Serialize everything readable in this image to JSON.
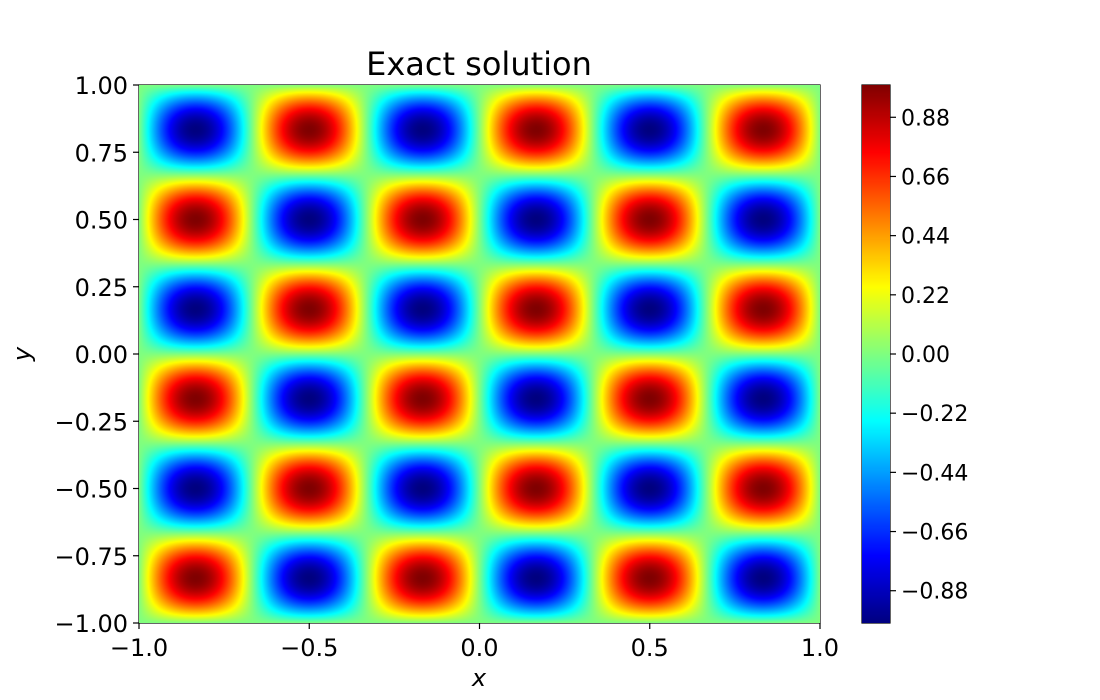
{
  "chart_data": {
    "type": "heatmap",
    "title": "Exact solution",
    "xlabel": "x",
    "ylabel": "y",
    "xlim": [
      -1.0,
      1.0
    ],
    "ylim": [
      -1.0,
      1.0
    ],
    "colormap": "jet",
    "field": {
      "formula": "sin(3*pi*x)*sin(3*pi*y)",
      "x_periods": 3,
      "y_periods": 3,
      "vmin": -1.0,
      "vmax": 1.0
    },
    "x_ticks": [
      {
        "value": -1.0,
        "label": "−1.0"
      },
      {
        "value": -0.5,
        "label": "−0.5"
      },
      {
        "value": 0.0,
        "label": "0.0"
      },
      {
        "value": 0.5,
        "label": "0.5"
      },
      {
        "value": 1.0,
        "label": "1.0"
      }
    ],
    "y_ticks": [
      {
        "value": 1.0,
        "label": "1.00"
      },
      {
        "value": 0.75,
        "label": "0.75"
      },
      {
        "value": 0.5,
        "label": "0.50"
      },
      {
        "value": 0.25,
        "label": "0.25"
      },
      {
        "value": 0.0,
        "label": "0.00"
      },
      {
        "value": -0.25,
        "label": "−0.25"
      },
      {
        "value": -0.5,
        "label": "−0.50"
      },
      {
        "value": -0.75,
        "label": "−0.75"
      },
      {
        "value": -1.0,
        "label": "−1.00"
      }
    ],
    "colorbar": {
      "range": [
        -1.0,
        1.0
      ],
      "ticks": [
        {
          "value": 0.88,
          "label": "0.88"
        },
        {
          "value": 0.66,
          "label": "0.66"
        },
        {
          "value": 0.44,
          "label": "0.44"
        },
        {
          "value": 0.22,
          "label": "0.22"
        },
        {
          "value": 0.0,
          "label": "0.00"
        },
        {
          "value": -0.22,
          "label": "−0.22"
        },
        {
          "value": -0.44,
          "label": "−0.44"
        },
        {
          "value": -0.66,
          "label": "−0.66"
        },
        {
          "value": -0.88,
          "label": "−0.88"
        }
      ]
    }
  }
}
